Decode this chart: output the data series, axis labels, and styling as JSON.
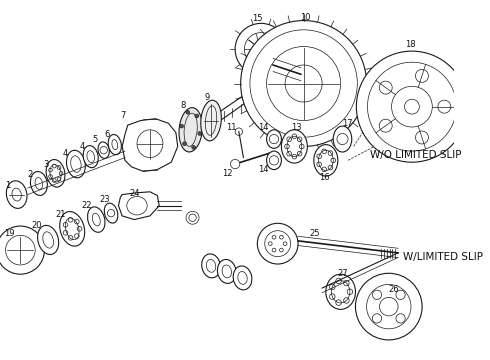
{
  "bg_color": "#ffffff",
  "line_color": "#1a1a1a",
  "label_color": "#111111",
  "wo_limited_slip_text": "W/O LIMITED SLIP",
  "w_limited_slip_text": "W/LIMITED SLIP",
  "font_size_labels": 6.0,
  "font_size_wo": 7.5
}
